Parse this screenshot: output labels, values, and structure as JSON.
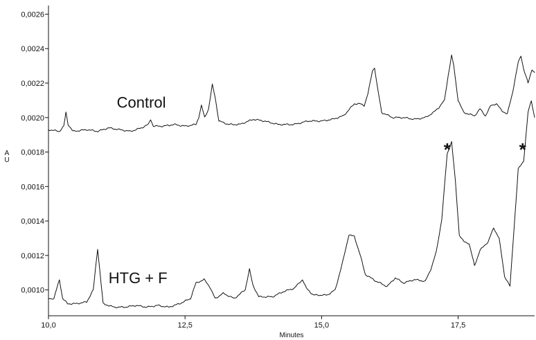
{
  "chart_data": {
    "type": "line",
    "xlabel": "Minutes",
    "ylabel": "AU",
    "xlim": [
      10.0,
      18.9
    ],
    "ylim": [
      0.00085,
      0.00265
    ],
    "xticks": [
      {
        "value": 10.0,
        "label": "10,0"
      },
      {
        "value": 12.5,
        "label": "12,5"
      },
      {
        "value": 15.0,
        "label": "15,0"
      },
      {
        "value": 17.5,
        "label": "17,5"
      }
    ],
    "yticks": [
      {
        "value": 0.001,
        "label": "0,0010"
      },
      {
        "value": 0.0012,
        "label": "0,0012"
      },
      {
        "value": 0.0014,
        "label": "0,0014"
      },
      {
        "value": 0.0016,
        "label": "0,0016"
      },
      {
        "value": 0.0018,
        "label": "0,0018"
      },
      {
        "value": 0.002,
        "label": "0,0020"
      },
      {
        "value": 0.0022,
        "label": "0,0022"
      },
      {
        "value": 0.0024,
        "label": "0,0024"
      },
      {
        "value": 0.0026,
        "label": "0,0026"
      }
    ],
    "series": [
      {
        "name": "Control",
        "points": [
          [
            10.0,
            0.00193
          ],
          [
            10.2,
            0.00192
          ],
          [
            10.28,
            0.00195
          ],
          [
            10.32,
            0.00203
          ],
          [
            10.36,
            0.00196
          ],
          [
            10.45,
            0.00192
          ],
          [
            10.7,
            0.00193
          ],
          [
            10.9,
            0.00192
          ],
          [
            11.1,
            0.00194
          ],
          [
            11.3,
            0.00193
          ],
          [
            11.5,
            0.00192
          ],
          [
            11.7,
            0.00194
          ],
          [
            11.83,
            0.00196
          ],
          [
            11.87,
            0.00199
          ],
          [
            11.92,
            0.00195
          ],
          [
            12.1,
            0.00195
          ],
          [
            12.3,
            0.00196
          ],
          [
            12.5,
            0.00195
          ],
          [
            12.7,
            0.00196
          ],
          [
            12.75,
            0.002
          ],
          [
            12.8,
            0.00207
          ],
          [
            12.86,
            0.002
          ],
          [
            12.93,
            0.00205
          ],
          [
            13.0,
            0.00219
          ],
          [
            13.05,
            0.00212
          ],
          [
            13.12,
            0.00198
          ],
          [
            13.3,
            0.00196
          ],
          [
            13.5,
            0.00196
          ],
          [
            13.75,
            0.00199
          ],
          [
            13.95,
            0.00198
          ],
          [
            14.2,
            0.00196
          ],
          [
            14.5,
            0.00196
          ],
          [
            14.75,
            0.00198
          ],
          [
            15.0,
            0.00198
          ],
          [
            15.2,
            0.00199
          ],
          [
            15.4,
            0.00201
          ],
          [
            15.6,
            0.00208
          ],
          [
            15.7,
            0.00208
          ],
          [
            15.78,
            0.00207
          ],
          [
            15.85,
            0.00214
          ],
          [
            15.93,
            0.00227
          ],
          [
            15.97,
            0.00229
          ],
          [
            16.02,
            0.00218
          ],
          [
            16.1,
            0.00203
          ],
          [
            16.3,
            0.002
          ],
          [
            16.5,
            0.002
          ],
          [
            16.7,
            0.00199
          ],
          [
            16.9,
            0.002
          ],
          [
            17.05,
            0.00203
          ],
          [
            17.15,
            0.00206
          ],
          [
            17.25,
            0.0021
          ],
          [
            17.32,
            0.00225
          ],
          [
            17.38,
            0.00236
          ],
          [
            17.42,
            0.0023
          ],
          [
            17.5,
            0.0021
          ],
          [
            17.6,
            0.00203
          ],
          [
            17.8,
            0.00201
          ],
          [
            17.9,
            0.00205
          ],
          [
            18.0,
            0.00201
          ],
          [
            18.1,
            0.00207
          ],
          [
            18.2,
            0.00208
          ],
          [
            18.3,
            0.00204
          ],
          [
            18.4,
            0.00202
          ],
          [
            18.5,
            0.00215
          ],
          [
            18.6,
            0.00232
          ],
          [
            18.65,
            0.00236
          ],
          [
            18.7,
            0.00228
          ],
          [
            18.78,
            0.0022
          ],
          [
            18.85,
            0.00228
          ],
          [
            18.9,
            0.00226
          ]
        ]
      },
      {
        "name": "HTG + F",
        "points": [
          [
            10.0,
            0.00095
          ],
          [
            10.1,
            0.00095
          ],
          [
            10.2,
            0.00106
          ],
          [
            10.26,
            0.00095
          ],
          [
            10.35,
            0.00092
          ],
          [
            10.5,
            0.00092
          ],
          [
            10.7,
            0.00093
          ],
          [
            10.82,
            0.001
          ],
          [
            10.9,
            0.00124
          ],
          [
            10.95,
            0.00108
          ],
          [
            11.0,
            0.00092
          ],
          [
            11.2,
            0.0009
          ],
          [
            11.4,
            0.0009
          ],
          [
            11.6,
            0.00091
          ],
          [
            11.8,
            0.0009
          ],
          [
            12.0,
            0.00091
          ],
          [
            12.2,
            0.0009
          ],
          [
            12.4,
            0.00092
          ],
          [
            12.6,
            0.00095
          ],
          [
            12.7,
            0.00104
          ],
          [
            12.85,
            0.00106
          ],
          [
            12.95,
            0.00102
          ],
          [
            13.05,
            0.00095
          ],
          [
            13.2,
            0.00098
          ],
          [
            13.4,
            0.00095
          ],
          [
            13.6,
            0.001
          ],
          [
            13.68,
            0.00112
          ],
          [
            13.74,
            0.00103
          ],
          [
            13.85,
            0.00096
          ],
          [
            14.1,
            0.00096
          ],
          [
            14.3,
            0.00099
          ],
          [
            14.5,
            0.00101
          ],
          [
            14.65,
            0.00106
          ],
          [
            14.72,
            0.00101
          ],
          [
            14.85,
            0.00097
          ],
          [
            15.1,
            0.00097
          ],
          [
            15.25,
            0.001
          ],
          [
            15.4,
            0.00118
          ],
          [
            15.5,
            0.00132
          ],
          [
            15.6,
            0.00131
          ],
          [
            15.7,
            0.00121
          ],
          [
            15.8,
            0.00109
          ],
          [
            16.0,
            0.00105
          ],
          [
            16.2,
            0.00102
          ],
          [
            16.35,
            0.00107
          ],
          [
            16.5,
            0.00104
          ],
          [
            16.7,
            0.00106
          ],
          [
            16.9,
            0.00105
          ],
          [
            17.0,
            0.00112
          ],
          [
            17.1,
            0.00122
          ],
          [
            17.2,
            0.00141
          ],
          [
            17.3,
            0.00179
          ],
          [
            17.38,
            0.00186
          ],
          [
            17.45,
            0.00163
          ],
          [
            17.52,
            0.00132
          ],
          [
            17.6,
            0.00128
          ],
          [
            17.7,
            0.00127
          ],
          [
            17.8,
            0.00114
          ],
          [
            17.9,
            0.00123
          ],
          [
            18.05,
            0.00128
          ],
          [
            18.15,
            0.00136
          ],
          [
            18.25,
            0.0013
          ],
          [
            18.35,
            0.00108
          ],
          [
            18.45,
            0.00102
          ],
          [
            18.5,
            0.00125
          ],
          [
            18.6,
            0.0017
          ],
          [
            18.7,
            0.00175
          ],
          [
            18.78,
            0.00203
          ],
          [
            18.84,
            0.0021
          ],
          [
            18.9,
            0.002
          ]
        ]
      }
    ],
    "annotations": [
      {
        "text": "*",
        "x": 17.3,
        "y": 0.00185
      },
      {
        "text": "*",
        "x": 18.68,
        "y": 0.00185
      }
    ]
  }
}
